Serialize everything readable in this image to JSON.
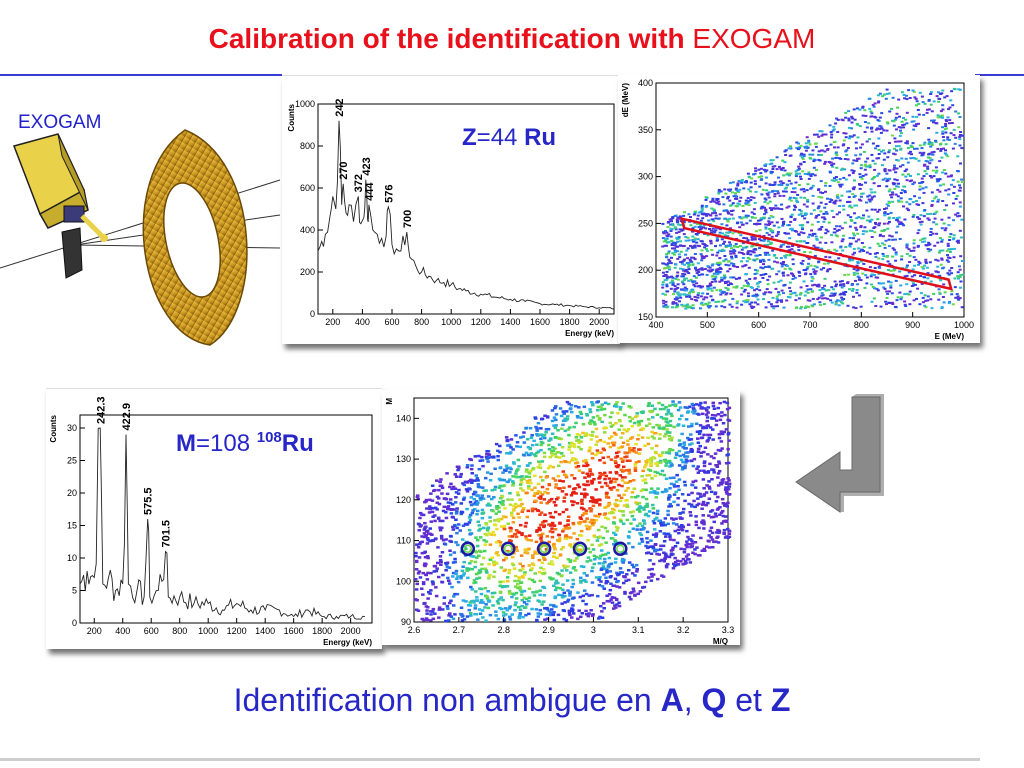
{
  "slide": {
    "title_bold": "Calibration of the identification with",
    "title_plain": "EXOGAM",
    "exogam_label": "EXOGAM",
    "bottom_text": "Identification non ambigue en",
    "bottom_A": "A",
    "bottom_sep": ",",
    "bottom_Q": "Q",
    "bottom_et": "et",
    "bottom_Z": "Z"
  },
  "colors": {
    "title": "#e8101b",
    "blue_text": "#2727c8",
    "gate_red": "#e0101a",
    "gate_circle": "#1a1aa0"
  },
  "arrow_icon": "return-arrow-icon",
  "chart_data": [
    {
      "type": "line",
      "annotation": "Z=44 Ru",
      "annotation_parts": {
        "Zsym": "Z",
        "eq": "=44",
        "el": "Ru"
      },
      "xlabel": "Energy (keV)",
      "ylabel": "Counts",
      "xlim": [
        100,
        2100
      ],
      "ylim": [
        0,
        1000
      ],
      "xticks": [
        200,
        400,
        600,
        800,
        1000,
        1200,
        1400,
        1600,
        1800,
        2000
      ],
      "yticks": [
        0,
        200,
        400,
        600,
        800,
        1000
      ],
      "x": [
        100,
        150,
        180,
        200,
        220,
        242,
        260,
        270,
        290,
        310,
        340,
        372,
        390,
        410,
        423,
        435,
        444,
        470,
        500,
        530,
        560,
        576,
        600,
        630,
        660,
        700,
        720,
        760,
        800,
        850,
        900,
        950,
        1000,
        1050,
        1100,
        1200,
        1300,
        1400,
        1500,
        1600,
        1700,
        1800,
        1900,
        2000,
        2050,
        2100
      ],
      "y": [
        300,
        380,
        460,
        560,
        500,
        920,
        520,
        620,
        480,
        520,
        440,
        560,
        430,
        460,
        640,
        450,
        520,
        400,
        380,
        360,
        370,
        510,
        330,
        310,
        300,
        390,
        270,
        230,
        200,
        180,
        160,
        150,
        140,
        120,
        110,
        95,
        80,
        70,
        60,
        50,
        45,
        40,
        35,
        30,
        30,
        25
      ],
      "peak_labels": [
        {
          "x": 242,
          "y": 920,
          "text": "242"
        },
        {
          "x": 270,
          "y": 620,
          "text": "270"
        },
        {
          "x": 372,
          "y": 560,
          "text": "372"
        },
        {
          "x": 423,
          "y": 640,
          "text": "423"
        },
        {
          "x": 444,
          "y": 520,
          "text": "444"
        },
        {
          "x": 576,
          "y": 510,
          "text": "576"
        },
        {
          "x": 700,
          "y": 390,
          "text": "700"
        }
      ]
    },
    {
      "type": "heatmap",
      "xlabel": "E (MeV)",
      "ylabel": "dE (MeV)",
      "xlim": [
        400,
        1000
      ],
      "ylim": [
        150,
        400
      ],
      "xticks": [
        400,
        500,
        600,
        700,
        800,
        900,
        1000
      ],
      "yticks": [
        150,
        200,
        250,
        300,
        350,
        400
      ],
      "gate_polygon": [
        [
          450,
          255
        ],
        [
          970,
          190
        ],
        [
          975,
          180
        ],
        [
          455,
          245
        ]
      ]
    },
    {
      "type": "line",
      "annotation_parts": {
        "Msym": "M",
        "eq": "=108",
        "sup": "108",
        "el": "Ru"
      },
      "xlabel": "Energy (keV)",
      "ylabel": "Counts",
      "xlim": [
        100,
        2150
      ],
      "ylim": [
        0,
        32
      ],
      "xticks": [
        200,
        400,
        600,
        800,
        1000,
        1200,
        1400,
        1600,
        1800,
        2000
      ],
      "yticks": [
        0,
        5,
        10,
        15,
        20,
        25,
        30
      ],
      "x": [
        100,
        150,
        200,
        242,
        260,
        300,
        350,
        400,
        423,
        440,
        500,
        550,
        575,
        590,
        650,
        700,
        720,
        800,
        900,
        1000,
        1100,
        1200,
        1300,
        1400,
        1500,
        1600,
        1700,
        1800,
        1900,
        2000,
        2100
      ],
      "y": [
        6,
        8,
        7,
        30,
        6,
        7,
        5,
        6,
        29,
        6,
        5,
        4,
        16,
        4,
        5,
        11,
        4,
        4,
        3,
        3,
        2,
        3,
        2,
        2,
        2,
        1,
        2,
        1,
        1,
        1,
        1
      ],
      "peak_labels": [
        {
          "x": 242.3,
          "y": 30,
          "text": "242.3"
        },
        {
          "x": 422.9,
          "y": 29,
          "text": "422.9"
        },
        {
          "x": 575.5,
          "y": 16,
          "text": "575.5"
        },
        {
          "x": 701.5,
          "y": 11,
          "text": "701.5"
        }
      ]
    },
    {
      "type": "heatmap",
      "xlabel": "M/Q",
      "ylabel": "M",
      "xlim": [
        2.6,
        3.3
      ],
      "ylim": [
        90,
        145
      ],
      "xticks": [
        2.6,
        2.7,
        2.8,
        2.9,
        3.0,
        3.1,
        3.2,
        3.3
      ],
      "xticklabels": [
        "2.6",
        "2.7",
        "2.8",
        "2.9",
        "3",
        "3.1",
        "3.2",
        "3.3"
      ],
      "yticks": [
        90,
        100,
        110,
        120,
        130,
        140
      ],
      "gate_circles": [
        [
          2.72,
          108
        ],
        [
          2.81,
          108
        ],
        [
          2.89,
          108
        ],
        [
          2.97,
          108
        ],
        [
          3.06,
          108
        ]
      ]
    }
  ]
}
